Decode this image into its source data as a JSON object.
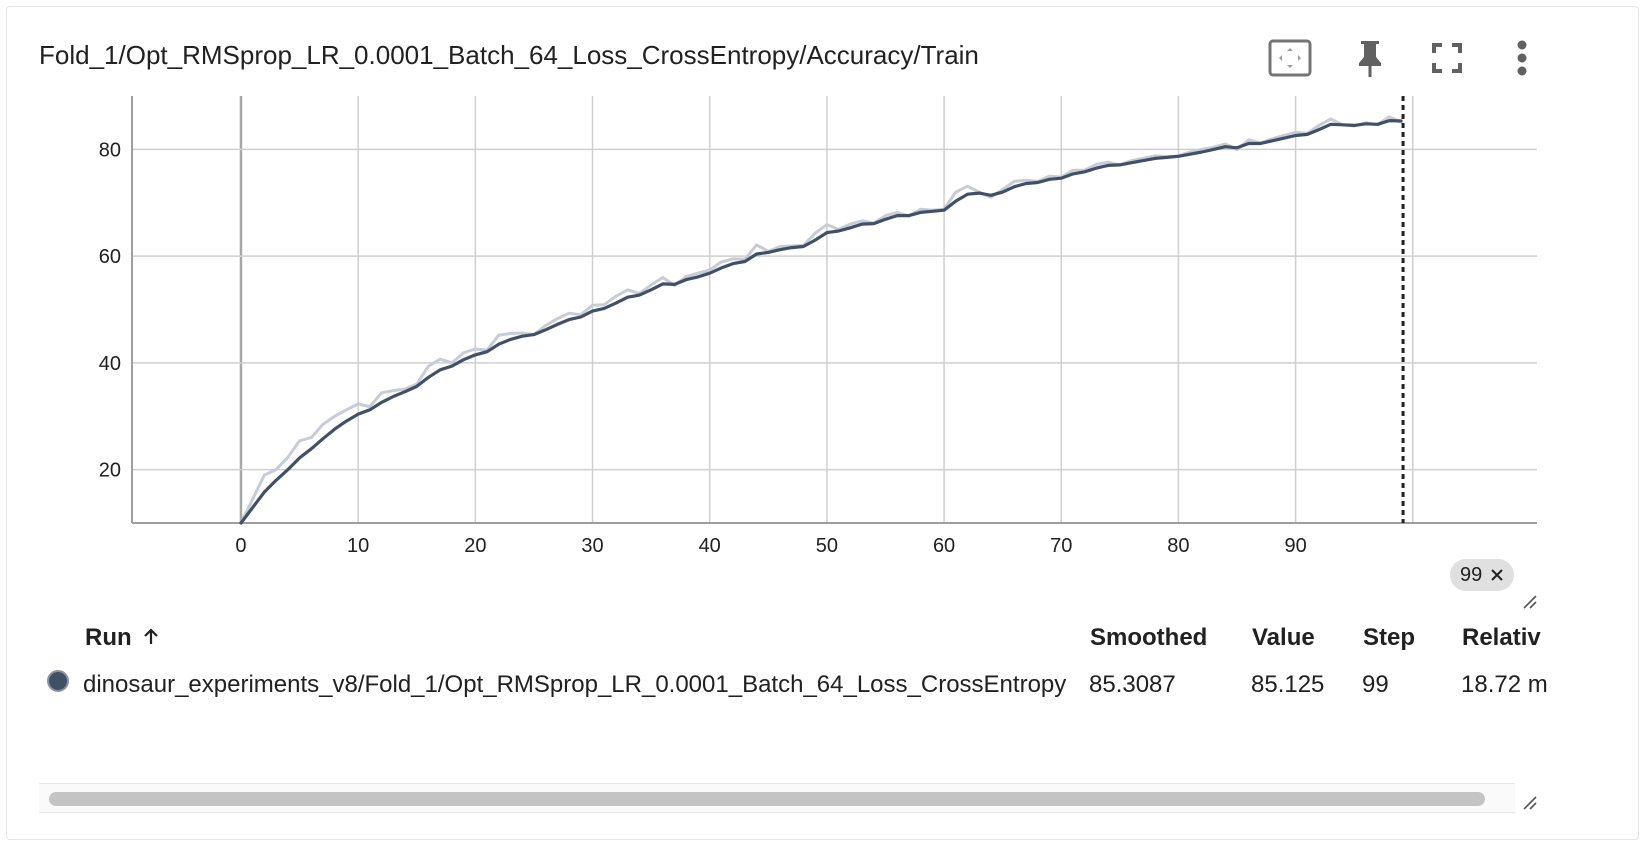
{
  "card": {
    "title": "Fold_1/Opt_RMSprop_LR_0.0001_Batch_64_Loss_CrossEntropy/Accuracy/Train"
  },
  "toolbar": {
    "icons": [
      "fit-domain-icon",
      "pin-icon",
      "fullscreen-icon",
      "more-vert-icon"
    ]
  },
  "colors": {
    "smoothed_line": "#425066",
    "raw_line": "#c6ccd8",
    "grid": "#cfcfcf",
    "axis": "#9e9e9e"
  },
  "chart_data": {
    "type": "line",
    "title": "Fold_1/Opt_RMSprop_LR_0.0001_Batch_64_Loss_CrossEntropy/Accuracy/Train",
    "xlabel": "",
    "ylabel": "",
    "x_ticks": [
      0,
      10,
      20,
      30,
      40,
      50,
      60,
      70,
      80,
      90
    ],
    "y_ticks": [
      20,
      40,
      60,
      80
    ],
    "xlim": [
      -9.3,
      110.6
    ],
    "ylim": [
      10,
      90
    ],
    "grid": true,
    "hover_step": 99,
    "hover_badge": "99",
    "series": [
      {
        "role": "raw",
        "x": [
          0,
          1,
          2,
          3,
          4,
          5,
          6,
          7,
          8,
          9,
          10,
          11,
          12,
          13,
          14,
          15,
          16,
          17,
          18,
          19,
          20,
          21,
          22,
          23,
          24,
          25,
          26,
          27,
          28,
          29,
          30,
          31,
          32,
          33,
          34,
          35,
          36,
          37,
          38,
          39,
          40,
          41,
          42,
          43,
          44,
          45,
          46,
          47,
          48,
          49,
          50,
          51,
          52,
          53,
          54,
          55,
          56,
          57,
          58,
          59,
          60,
          61,
          62,
          63,
          64,
          65,
          66,
          67,
          68,
          69,
          70,
          71,
          72,
          73,
          74,
          75,
          76,
          77,
          78,
          79,
          80,
          81,
          82,
          83,
          84,
          85,
          86,
          87,
          88,
          89,
          90,
          91,
          92,
          93,
          94,
          95,
          96,
          97,
          98,
          99
        ],
        "values": [
          10.0,
          14.5,
          19.0,
          20.0,
          22.3,
          25.4,
          26.0,
          28.5,
          30.0,
          31.2,
          32.3,
          31.8,
          34.4,
          34.8,
          35.1,
          36.0,
          39.4,
          40.7,
          40.0,
          41.9,
          42.6,
          42.4,
          45.2,
          45.5,
          45.6,
          45.3,
          47.0,
          48.3,
          49.3,
          49.0,
          50.8,
          50.9,
          52.5,
          53.7,
          53.0,
          54.6,
          56.0,
          54.5,
          56.2,
          56.8,
          57.4,
          58.9,
          59.5,
          59.4,
          62.1,
          60.9,
          61.8,
          61.9,
          62.0,
          64.3,
          65.9,
          65.0,
          66.0,
          66.6,
          66.2,
          67.6,
          68.2,
          67.5,
          68.8,
          68.6,
          68.8,
          72.0,
          73.1,
          72.0,
          71.0,
          72.5,
          74.0,
          74.2,
          74.0,
          75.0,
          74.8,
          76.1,
          76.1,
          77.2,
          77.6,
          77.1,
          77.9,
          78.3,
          78.8,
          78.6,
          78.8,
          79.5,
          80.0,
          80.4,
          81.0,
          80.0,
          81.8,
          81.2,
          82.0,
          82.6,
          83.2,
          83.0,
          84.5,
          85.7,
          84.6,
          84.4,
          85.0,
          84.6,
          86.1,
          85.1
        ]
      },
      {
        "role": "smoothed",
        "x": [
          0,
          1,
          2,
          3,
          4,
          5,
          6,
          7,
          8,
          9,
          10,
          11,
          12,
          13,
          14,
          15,
          16,
          17,
          18,
          19,
          20,
          21,
          22,
          23,
          24,
          25,
          26,
          27,
          28,
          29,
          30,
          31,
          32,
          33,
          34,
          35,
          36,
          37,
          38,
          39,
          40,
          41,
          42,
          43,
          44,
          45,
          46,
          47,
          48,
          49,
          50,
          51,
          52,
          53,
          54,
          55,
          56,
          57,
          58,
          59,
          60,
          61,
          62,
          63,
          64,
          65,
          66,
          67,
          68,
          69,
          70,
          71,
          72,
          73,
          74,
          75,
          76,
          77,
          78,
          79,
          80,
          81,
          82,
          83,
          84,
          85,
          86,
          87,
          88,
          89,
          90,
          91,
          92,
          93,
          94,
          95,
          96,
          97,
          98,
          99
        ],
        "values": [
          10.0,
          12.9,
          15.8,
          18.0,
          20.0,
          22.2,
          23.9,
          25.8,
          27.6,
          29.1,
          30.4,
          31.2,
          32.6,
          33.7,
          34.6,
          35.6,
          37.3,
          38.7,
          39.4,
          40.6,
          41.5,
          42.1,
          43.5,
          44.4,
          45.0,
          45.3,
          46.2,
          47.2,
          48.1,
          48.6,
          49.7,
          50.2,
          51.2,
          52.3,
          52.7,
          53.7,
          54.8,
          54.7,
          55.6,
          56.1,
          56.8,
          57.8,
          58.6,
          59.0,
          60.4,
          60.7,
          61.2,
          61.6,
          61.8,
          63.0,
          64.4,
          64.7,
          65.3,
          66.0,
          66.1,
          66.9,
          67.6,
          67.6,
          68.2,
          68.4,
          68.6,
          70.3,
          71.6,
          71.8,
          71.4,
          72.0,
          73.0,
          73.6,
          73.8,
          74.4,
          74.6,
          75.4,
          75.8,
          76.5,
          77.0,
          77.1,
          77.5,
          77.9,
          78.3,
          78.5,
          78.7,
          79.1,
          79.5,
          80.0,
          80.5,
          80.3,
          81.1,
          81.1,
          81.6,
          82.1,
          82.6,
          82.8,
          83.7,
          84.7,
          84.6,
          84.5,
          84.8,
          84.7,
          85.4,
          85.3087
        ]
      }
    ]
  },
  "table": {
    "headers": {
      "run": "Run",
      "run_sort_icon": "arrow-up-icon",
      "smoothed": "Smoothed",
      "value": "Value",
      "step": "Step",
      "relative": "Relativ"
    },
    "rows": [
      {
        "run": "dinosaur_experiments_v8/Fold_1/Opt_RMSprop_LR_0.0001_Batch_64_Loss_CrossEntropy",
        "smoothed": "85.3087",
        "value": "85.125",
        "step": "99",
        "relative": "18.72 m",
        "color": "#425066"
      }
    ]
  }
}
